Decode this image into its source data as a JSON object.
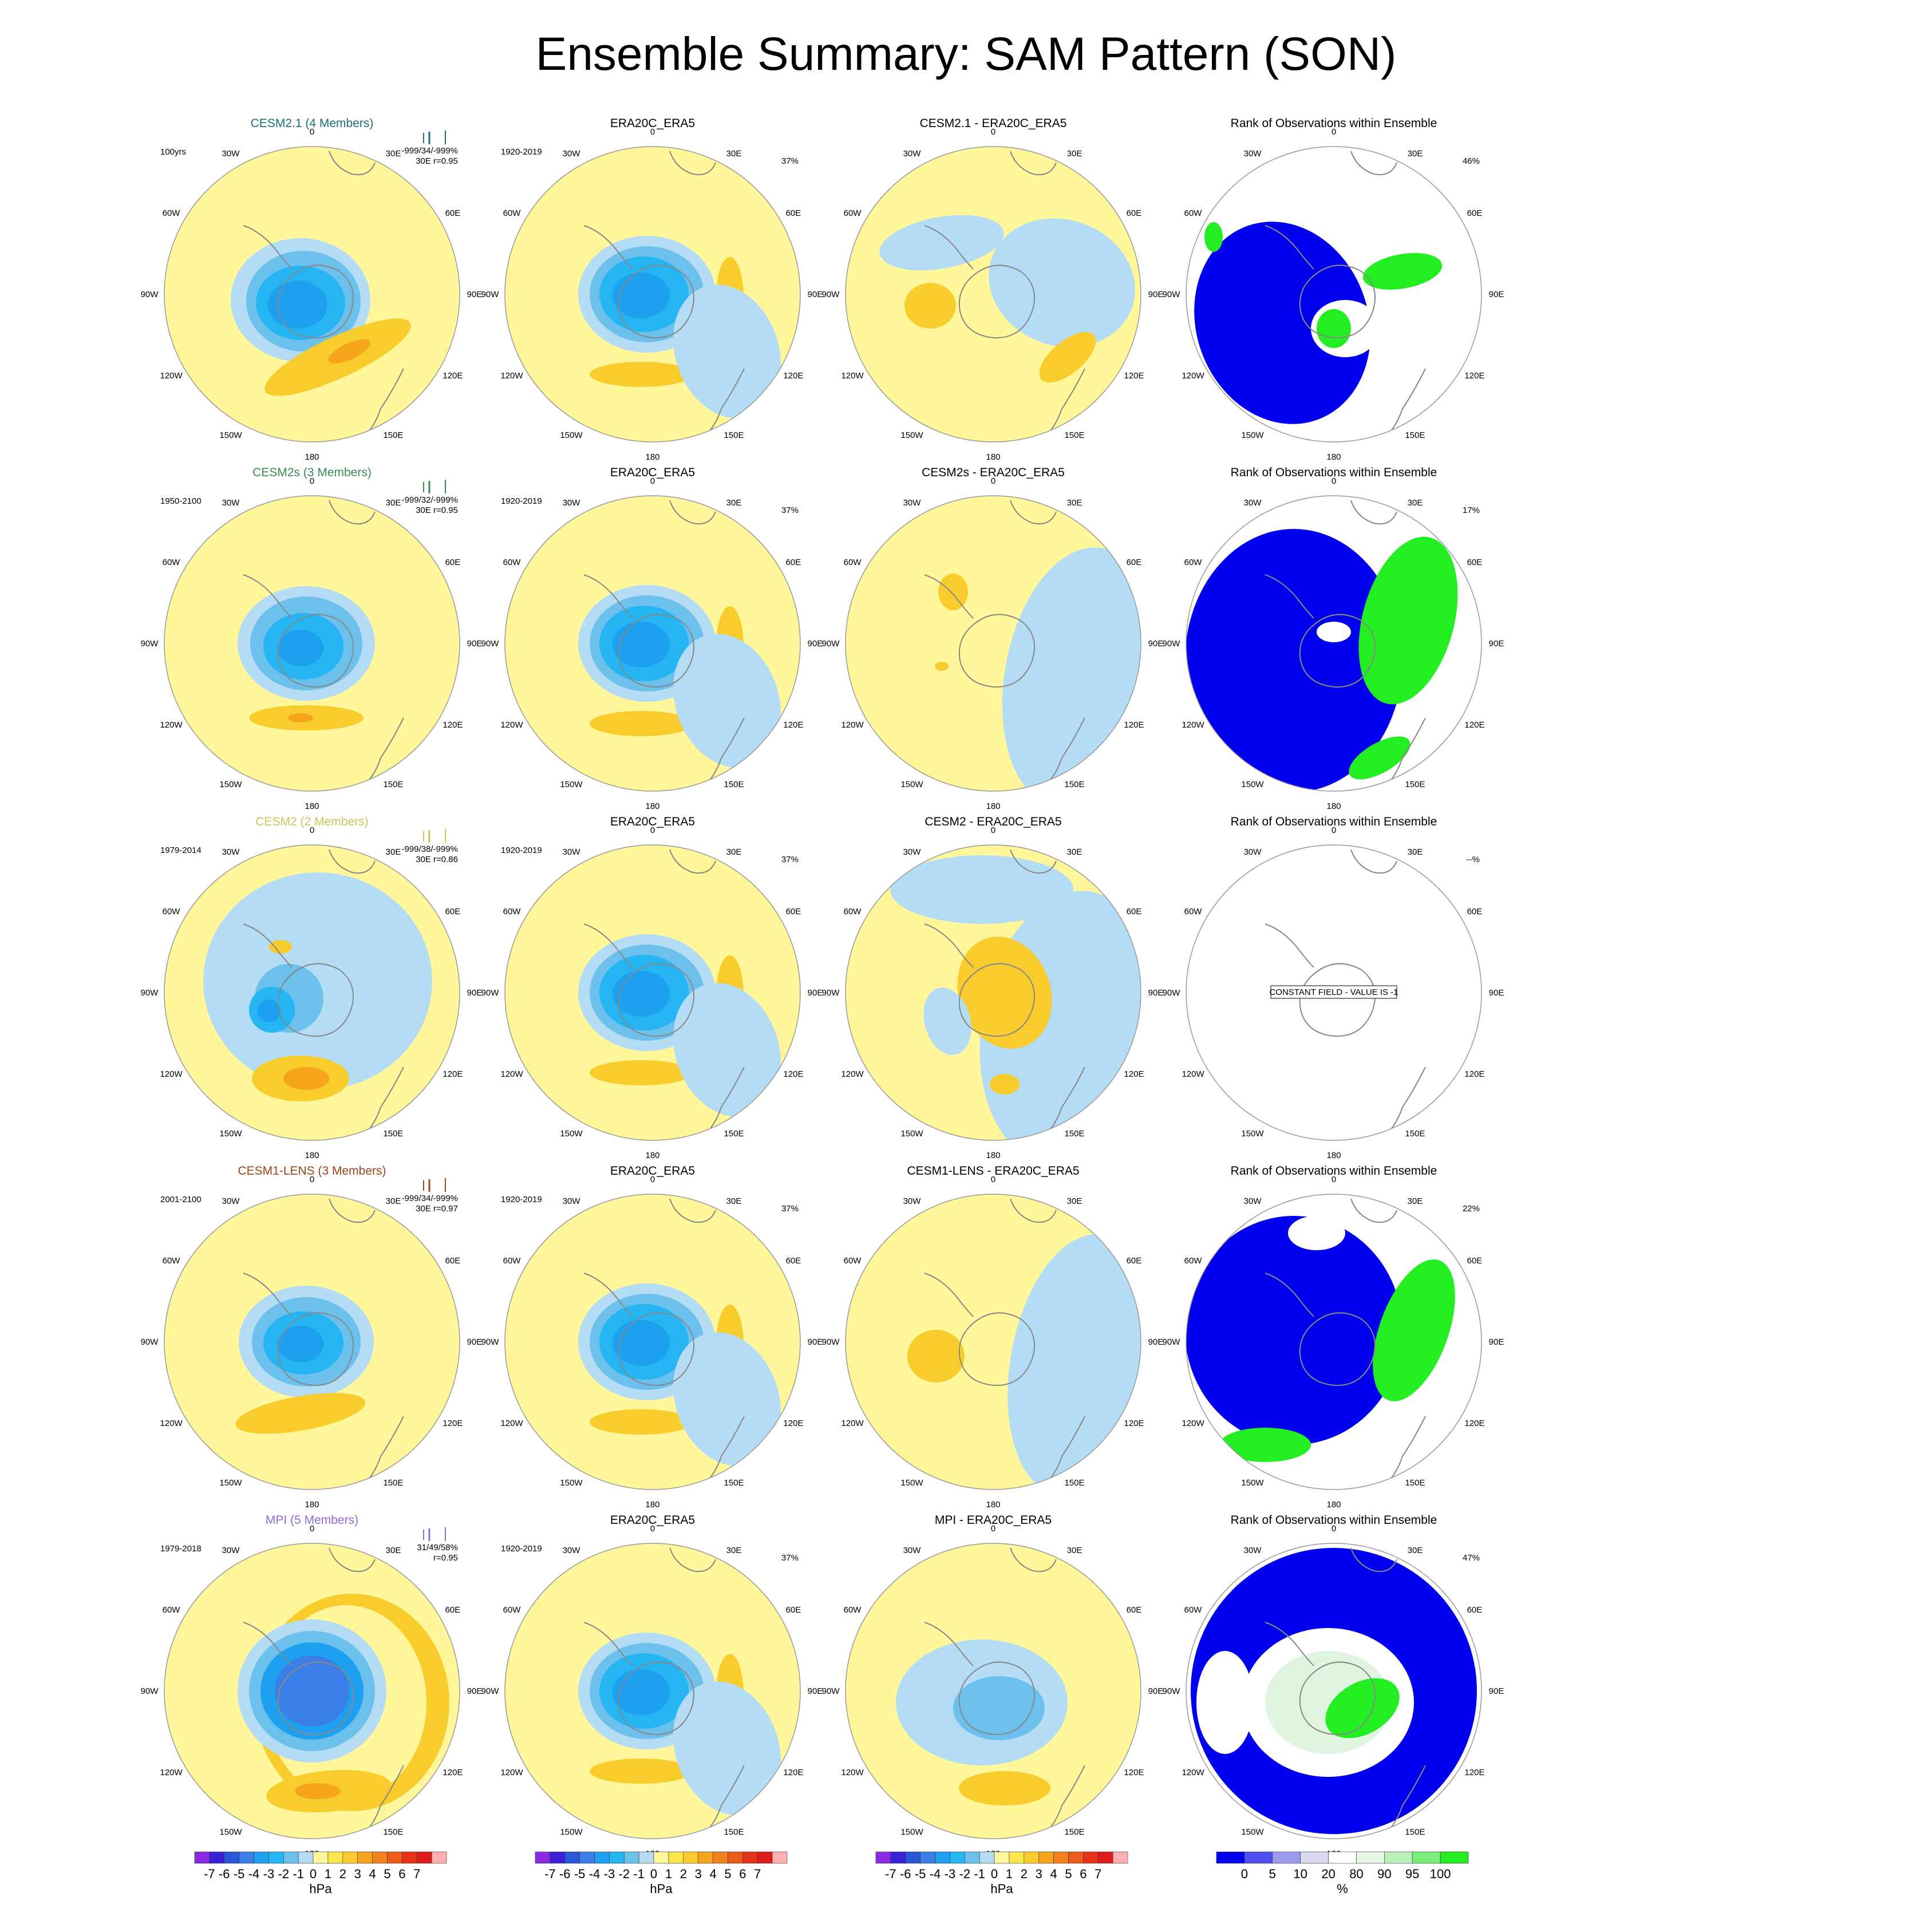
{
  "chart_data": {
    "type": "polar-contour-map-grid",
    "title": "Ensemble Summary: SAM Pattern (SON)",
    "projection": "south polar stereographic",
    "longitude_labels": [
      "0",
      "30E",
      "60E",
      "90E",
      "120E",
      "150E",
      "180",
      "150W",
      "120W",
      "90W",
      "60W",
      "30W"
    ],
    "colors": {
      "neg7": "#8b2be2",
      "neg6": "#3a20d8",
      "neg5": "#2a56d8",
      "neg4": "#3c7ee8",
      "neg3": "#1ea0f0",
      "neg2": "#24b5f2",
      "neg1": "#6cc0ec",
      "zero": "#b4dcf4",
      "pos0": "#fff79a",
      "pos1": "#fde64c",
      "pos2": "#f9cc2d",
      "pos3": "#f6a51c",
      "pos4": "#f2801b",
      "pos5": "#ee5a18",
      "pos6": "#e53219",
      "pos7": "#e01b1b",
      "pos8": "#ffb0b0",
      "rank_blue": "#0000ee",
      "rank_green": "#22ee22",
      "rank_pale": "#e0f5e0",
      "coast": "#888888"
    },
    "rows": [
      {
        "model": {
          "title": "CESM2.1 (4 Members)",
          "title_color": "#1b6f7a",
          "period": "100yrs",
          "stats_line1": "-999/34/-999%",
          "stats_line2": "30E r=0.95"
        },
        "obs": {
          "title": "ERA20C_ERA5",
          "period": "1920-2019",
          "pct": "37%"
        },
        "diff": {
          "title": "CESM2.1 - ERA20C_ERA5"
        },
        "rank": {
          "title": "Rank of Observations within Ensemble",
          "pct": "46%"
        }
      },
      {
        "model": {
          "title": "CESM2s (3 Members)",
          "title_color": "#3a8a55",
          "period": "1950-2100",
          "stats_line1": "-999/32/-999%",
          "stats_line2": "30E r=0.95"
        },
        "obs": {
          "title": "ERA20C_ERA5",
          "period": "1920-2019",
          "pct": "37%"
        },
        "diff": {
          "title": "CESM2s - ERA20C_ERA5"
        },
        "rank": {
          "title": "Rank of Observations within Ensemble",
          "pct": "17%"
        }
      },
      {
        "model": {
          "title": "CESM2 (2 Members)",
          "title_color": "#c9c55a",
          "period": "1979-2014",
          "stats_line1": "-999/38/-999%",
          "stats_line2": "30E r=0.86"
        },
        "obs": {
          "title": "ERA20C_ERA5",
          "period": "1920-2019",
          "pct": "37%"
        },
        "diff": {
          "title": "CESM2 - ERA20C_ERA5"
        },
        "rank": {
          "title": "Rank of Observations within Ensemble",
          "pct": "--%",
          "note": "CONSTANT FIELD - VALUE IS -1"
        }
      },
      {
        "model": {
          "title": "CESM1-LENS (3 Members)",
          "title_color": "#a0421a",
          "period": "2001-2100",
          "stats_line1": "-999/34/-999%",
          "stats_line2": "30E r=0.97"
        },
        "obs": {
          "title": "ERA20C_ERA5",
          "period": "1920-2019",
          "pct": "37%"
        },
        "diff": {
          "title": "CESM1-LENS - ERA20C_ERA5"
        },
        "rank": {
          "title": "Rank of Observations within Ensemble",
          "pct": "22%"
        }
      },
      {
        "model": {
          "title": "MPI (5 Members)",
          "title_color": "#8d6bd8",
          "period": "1979-2018",
          "stats_line1": "31/49/58%",
          "stats_line2": "r=0.95"
        },
        "obs": {
          "title": "ERA20C_ERA5",
          "period": "1920-2019",
          "pct": "37%"
        },
        "diff": {
          "title": "MPI - ERA20C_ERA5"
        },
        "rank": {
          "title": "Rank of Observations within Ensemble",
          "pct": "47%"
        }
      }
    ],
    "colorbars": [
      {
        "unit": "hPa",
        "labels": [
          "-7",
          "-6",
          "-5",
          "-4",
          "-3",
          "-2",
          "-1",
          "0",
          "1",
          "2",
          "3",
          "4",
          "5",
          "6",
          "7"
        ]
      },
      {
        "unit": "hPa",
        "labels": [
          "-7",
          "-6",
          "-5",
          "-4",
          "-3",
          "-2",
          "-1",
          "0",
          "1",
          "2",
          "3",
          "4",
          "5",
          "6",
          "7"
        ]
      },
      {
        "unit": "hPa",
        "labels": [
          "-7",
          "-6",
          "-5",
          "-4",
          "-3",
          "-2",
          "-1",
          "0",
          "1",
          "2",
          "3",
          "4",
          "5",
          "6",
          "7"
        ]
      },
      {
        "unit": "%",
        "labels": [
          "0",
          "5",
          "10",
          "20",
          "80",
          "90",
          "95",
          "100"
        ]
      }
    ]
  }
}
